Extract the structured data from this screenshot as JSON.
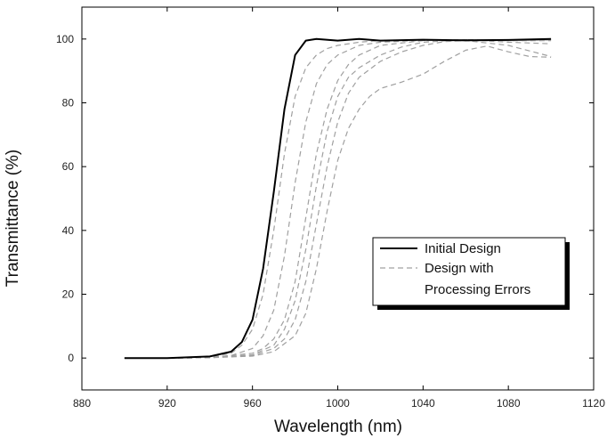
{
  "chart_data": {
    "type": "line",
    "title": "",
    "xlabel": "Wavelength (nm)",
    "ylabel": "Transmittance (%)",
    "xlim": [
      880,
      1120
    ],
    "ylim": [
      -10,
      110
    ],
    "xticks": [
      880,
      920,
      960,
      1000,
      1040,
      1080,
      1120
    ],
    "yticks": [
      0,
      20,
      40,
      60,
      80,
      100
    ],
    "grid": false,
    "legend_position": "lower-right",
    "series": [
      {
        "name": "Initial Design",
        "style": "solid",
        "color": "#000000",
        "x": [
          900,
          920,
          940,
          950,
          955,
          960,
          965,
          970,
          975,
          980,
          985,
          990,
          1000,
          1010,
          1020,
          1040,
          1060,
          1080,
          1100
        ],
        "y": [
          0,
          0,
          0.5,
          2,
          5,
          12,
          28,
          52,
          78,
          95,
          99.5,
          100,
          99.5,
          100,
          99.5,
          99.8,
          99.6,
          99.7,
          100
        ]
      },
      {
        "name": "Design with Processing Errors",
        "style": "dashed",
        "color": "#a0a0a0",
        "x": [
          900,
          920,
          940,
          950,
          955,
          960,
          965,
          970,
          975,
          980,
          985,
          990,
          995,
          1000,
          1010,
          1020,
          1040,
          1060,
          1080,
          1100
        ],
        "y": [
          0,
          0,
          0.3,
          1.5,
          4,
          9,
          20,
          40,
          64,
          82,
          91,
          95,
          97,
          98,
          99,
          99.5,
          99.7,
          99.5,
          99.6,
          99.8
        ]
      },
      {
        "name": "",
        "style": "dashed",
        "color": "#a0a0a0",
        "x": [
          900,
          920,
          940,
          950,
          960,
          965,
          970,
          975,
          980,
          985,
          990,
          995,
          1000,
          1010,
          1020,
          1040,
          1060,
          1080,
          1100
        ],
        "y": [
          0,
          0,
          0.2,
          0.8,
          3,
          7,
          15,
          32,
          55,
          74,
          86,
          92,
          95,
          98,
          99,
          99.6,
          99.4,
          99.5,
          99.7
        ]
      },
      {
        "name": "",
        "style": "dashed",
        "color": "#a0a0a0",
        "x": [
          900,
          920,
          940,
          960,
          965,
          970,
          975,
          980,
          985,
          990,
          995,
          1000,
          1005,
          1010,
          1020,
          1040,
          1060,
          1080,
          1100
        ],
        "y": [
          0,
          0,
          0.1,
          1.5,
          3,
          6,
          12,
          24,
          44,
          64,
          78,
          87,
          92,
          95,
          98,
          99.5,
          99.8,
          99,
          98.5
        ]
      },
      {
        "name": "",
        "style": "dashed",
        "color": "#a0a0a0",
        "x": [
          900,
          920,
          940,
          960,
          970,
          975,
          980,
          985,
          990,
          995,
          1000,
          1005,
          1010,
          1020,
          1030,
          1040,
          1060,
          1080,
          1100
        ],
        "y": [
          0,
          0,
          0.1,
          1,
          4,
          9,
          18,
          34,
          54,
          71,
          82,
          88,
          91,
          95,
          97.5,
          99,
          99.8,
          99.5,
          99.5
        ]
      },
      {
        "name": "",
        "style": "dashed",
        "color": "#a0a0a0",
        "x": [
          900,
          920,
          940,
          960,
          970,
          975,
          980,
          985,
          990,
          995,
          1000,
          1005,
          1010,
          1020,
          1030,
          1040,
          1050,
          1060,
          1080,
          1100
        ],
        "y": [
          0,
          0,
          0.1,
          0.8,
          3,
          6,
          12,
          24,
          42,
          60,
          74,
          83,
          88,
          93,
          96,
          98,
          99.2,
          99.5,
          98,
          94.5
        ]
      },
      {
        "name": "",
        "style": "dashed",
        "color": "#a0a0a0",
        "x": [
          900,
          920,
          940,
          960,
          970,
          980,
          985,
          990,
          995,
          1000,
          1005,
          1010,
          1015,
          1020,
          1030,
          1040,
          1050,
          1060,
          1070,
          1080,
          1090,
          1100
        ],
        "y": [
          0,
          0,
          0.1,
          0.6,
          2,
          7,
          14,
          28,
          46,
          62,
          72,
          78,
          82,
          84.5,
          86.5,
          89,
          93,
          96.5,
          97.8,
          96,
          94.5,
          94.3
        ]
      }
    ],
    "legend": [
      {
        "label": "Initial Design",
        "style": "solid"
      },
      {
        "label": "Design with\nProcessing Errors",
        "style": "dashed"
      }
    ],
    "legend_lines": [
      "Initial Design",
      "Design with",
      "Processing Errors"
    ]
  }
}
